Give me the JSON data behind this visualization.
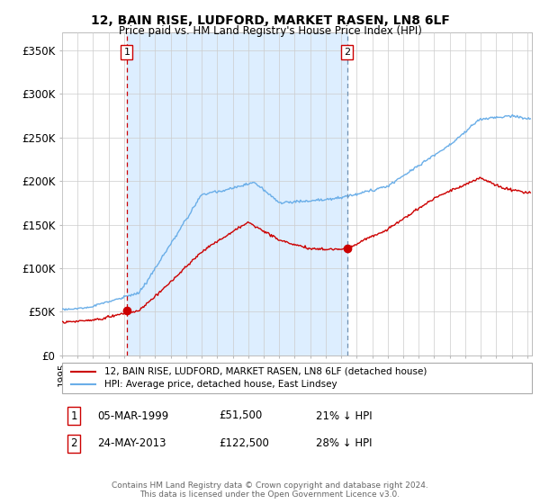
{
  "title": "12, BAIN RISE, LUDFORD, MARKET RASEN, LN8 6LF",
  "subtitle": "Price paid vs. HM Land Registry's House Price Index (HPI)",
  "ylabel_ticks": [
    "£0",
    "£50K",
    "£100K",
    "£150K",
    "£200K",
    "£250K",
    "£300K",
    "£350K"
  ],
  "ytick_values": [
    0,
    50000,
    100000,
    150000,
    200000,
    250000,
    300000,
    350000
  ],
  "ylim": [
    0,
    370000
  ],
  "xlim_start": 1995.0,
  "xlim_end": 2025.3,
  "sale1_x": 1999.17,
  "sale1_y": 51500,
  "sale1_label": "1",
  "sale1_date": "05-MAR-1999",
  "sale1_price": "£51,500",
  "sale1_note": "21% ↓ HPI",
  "sale2_x": 2013.38,
  "sale2_y": 122500,
  "sale2_label": "2",
  "sale2_date": "24-MAY-2013",
  "sale2_price": "£122,500",
  "sale2_note": "28% ↓ HPI",
  "hpi_color": "#6aaee8",
  "price_color": "#cc0000",
  "vline1_color": "#cc0000",
  "vline2_color": "#7090b0",
  "shade_color": "#ddeeff",
  "grid_color": "#cccccc",
  "background_color": "#ffffff",
  "legend_label_price": "12, BAIN RISE, LUDFORD, MARKET RASEN, LN8 6LF (detached house)",
  "legend_label_hpi": "HPI: Average price, detached house, East Lindsey",
  "footnote": "Contains HM Land Registry data © Crown copyright and database right 2024.\nThis data is licensed under the Open Government Licence v3.0."
}
